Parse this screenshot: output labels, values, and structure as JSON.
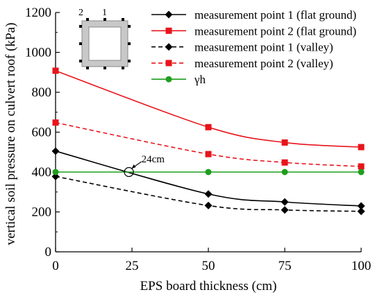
{
  "chart_data": {
    "type": "line",
    "xlabel": "EPS board thickness (cm)",
    "ylabel": "vertical soil pressure on culvert roof (kPa)",
    "xlim": [
      0,
      100
    ],
    "ylim": [
      0,
      1200
    ],
    "xticks": [
      0,
      25,
      50,
      75,
      100
    ],
    "yticks": [
      0,
      200,
      400,
      600,
      800,
      1000,
      1200
    ],
    "grid": false,
    "legend_position": "top-right",
    "series": [
      {
        "name": "measurement point 1 (flat ground)",
        "x": [
          0,
          50,
          75,
          100
        ],
        "values": [
          505,
          290,
          250,
          230
        ],
        "color": "#000000",
        "line_style": "solid",
        "marker": "diamond"
      },
      {
        "name": "measurement point 2 (flat ground)",
        "x": [
          0,
          50,
          75,
          100
        ],
        "values": [
          908,
          625,
          548,
          525
        ],
        "color": "#e8141b",
        "line_style": "solid",
        "marker": "square"
      },
      {
        "name": "measurement point 1 (valley)",
        "x": [
          0,
          50,
          75,
          100
        ],
        "values": [
          378,
          232,
          210,
          203
        ],
        "color": "#000000",
        "line_style": "dashed",
        "marker": "diamond"
      },
      {
        "name": "measurement point 2 (valley)",
        "x": [
          0,
          50,
          75,
          100
        ],
        "values": [
          648,
          490,
          448,
          428
        ],
        "color": "#e8141b",
        "line_style": "dashed",
        "marker": "square"
      },
      {
        "name": "γh",
        "x": [
          0,
          50,
          75,
          100
        ],
        "values": [
          400,
          400,
          400,
          400
        ],
        "color": "#1e9e1e",
        "line_style": "solid",
        "marker": "circle"
      }
    ],
    "annotations": [
      {
        "text": "24cm",
        "x": 24,
        "y": 400,
        "marker": "open-circle"
      }
    ],
    "inset": {
      "description_labels": [
        "2",
        "1"
      ],
      "fill_color": "#c8c8c8"
    }
  }
}
